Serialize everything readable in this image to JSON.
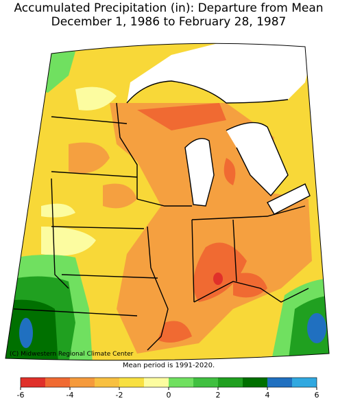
{
  "title": "Accumulated Precipitation (in): Departure from Mean",
  "subtitle": "December 1, 1986 to February 28, 1987",
  "credit": "(C) Midwestern Regional Climate Center",
  "note": "Mean period is 1991-2020.",
  "legend": {
    "bins": [
      -6,
      -5,
      -4,
      -3,
      -2,
      -1,
      0,
      1,
      2,
      3,
      4,
      5,
      6
    ],
    "colors": [
      "#e0302a",
      "#f06a32",
      "#f59a3c",
      "#f8c040",
      "#f8e040",
      "#fcfca0",
      "#70e060",
      "#40c040",
      "#20a020",
      "#007000",
      "#2070c0",
      "#30a8e0"
    ],
    "ticks": [
      -6,
      -4,
      -2,
      0,
      2,
      4,
      6
    ]
  }
}
